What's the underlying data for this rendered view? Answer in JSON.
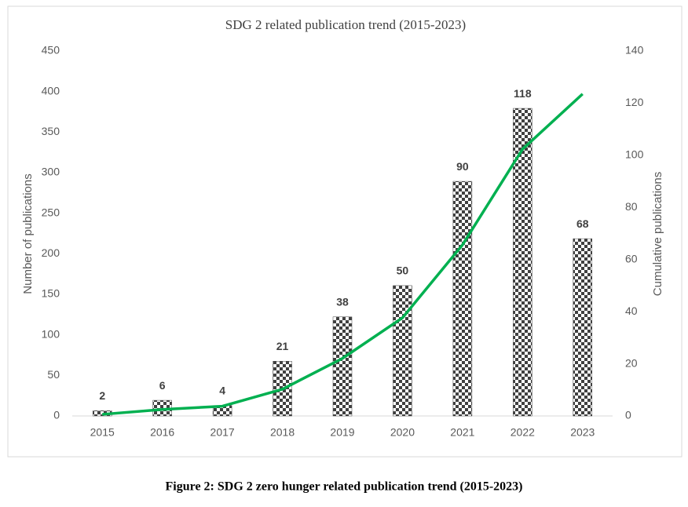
{
  "chart_data": {
    "type": "combo",
    "title": "SDG 2 related publication trend (2015-2023)",
    "y_label": "Number of publications",
    "y2_label": "Cumulative publications",
    "categories": [
      "2015",
      "2016",
      "2017",
      "2018",
      "2019",
      "2020",
      "2021",
      "2022",
      "2023"
    ],
    "ylim": [
      0,
      450
    ],
    "yticks": [
      0,
      50,
      100,
      150,
      200,
      250,
      300,
      350,
      400,
      450
    ],
    "y2lim": [
      0,
      140
    ],
    "y2ticks": [
      0,
      20,
      40,
      60,
      80,
      100,
      120,
      140
    ],
    "series": [
      {
        "kind": "bar",
        "axis": "y2",
        "color": "#404040",
        "values": [
          2,
          6,
          4,
          21,
          38,
          50,
          90,
          118,
          68
        ]
      },
      {
        "kind": "line",
        "axis": "y",
        "color": "#00b050",
        "values": [
          2,
          8,
          12,
          33,
          71,
          121,
          211,
          329,
          397
        ]
      }
    ],
    "caption": "Figure 2: SDG 2 zero hunger related publication trend (2015-2023)"
  }
}
